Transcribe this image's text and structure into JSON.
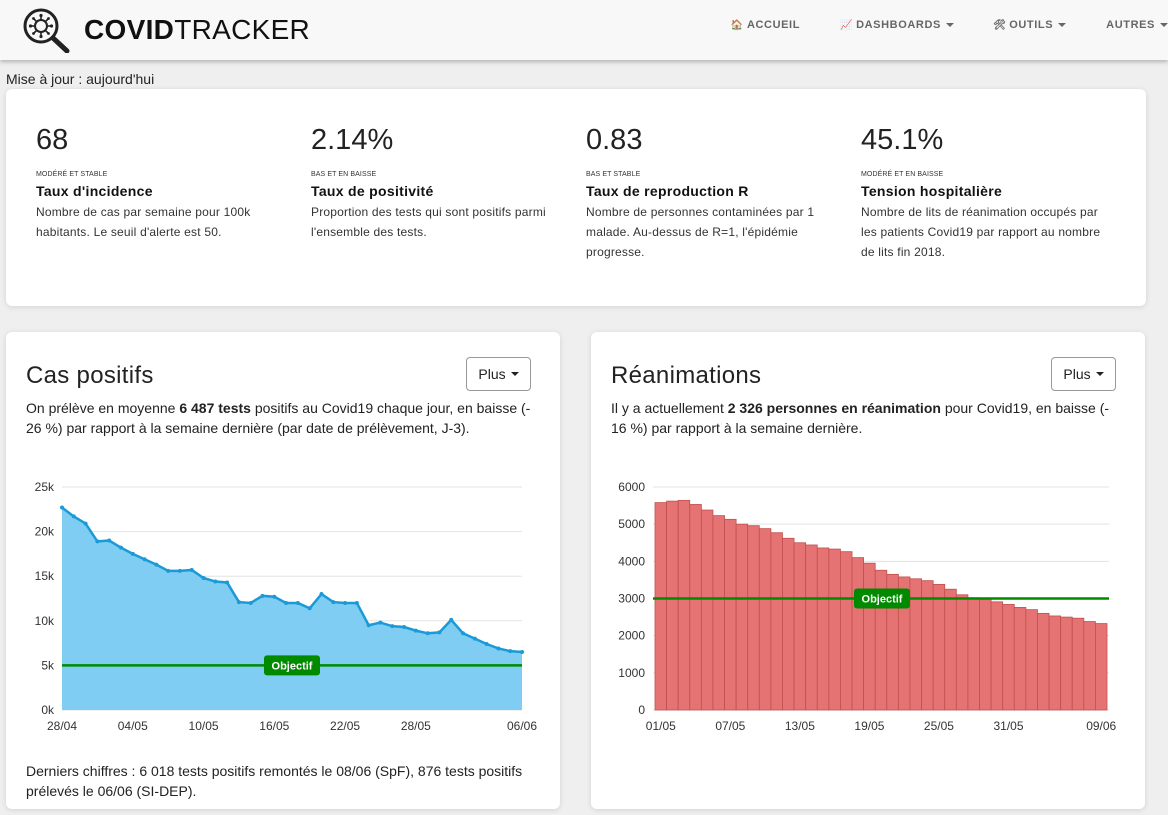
{
  "navbar": {
    "brand_bold": "COVID",
    "brand_light": "TRACKER",
    "items": [
      {
        "icon": "🏠",
        "label": "ACCUEIL",
        "dropdown": false
      },
      {
        "icon": "📈",
        "label": "DASHBOARDS",
        "dropdown": true
      },
      {
        "icon": "🛠",
        "label": "OUTILS",
        "dropdown": true
      },
      {
        "icon": "",
        "label": "AUTRES",
        "dropdown": true
      }
    ]
  },
  "update_text": "Mise à jour : aujourd'hui",
  "kpis": [
    {
      "value": "68",
      "level": "MODÉRÉ ET STABLE",
      "title": "Taux d'incidence",
      "desc": "Nombre de cas par semaine pour 100k habitants. Le seuil d'alerte est 50."
    },
    {
      "value": "2.14%",
      "level": "BAS ET EN BAISSE",
      "title": "Taux de positivité",
      "desc": "Proportion des tests qui sont positifs parmi l'ensemble des tests."
    },
    {
      "value": "0.83",
      "level": "BAS ET STABLE",
      "title": "Taux de reproduction R",
      "desc": "Nombre de personnes contaminées par 1 malade. Au-dessus de R=1, l'épidémie progresse."
    },
    {
      "value": "45.1%",
      "level": "MODÉRÉ ET EN BAISSE",
      "title": "Tension hospitalière",
      "desc": "Nombre de lits de réanimation occupés par les patients Covid19 par rapport au nombre de lits fin 2018."
    }
  ],
  "cas": {
    "title": "Cas positifs",
    "button": "Plus",
    "text_pre": "On prélève en moyenne ",
    "text_bold": "6 487 tests",
    "text_post": " positifs au Covid19 chaque jour, en baisse (- 26 %) par rapport à la semaine dernière (par date de prélèvement, J-3).",
    "footer": "Derniers chiffres : 6 018 tests positifs remontés le 08/06 (SpF), 876 tests positifs prélevés le 06/06 (SI-DEP)."
  },
  "rea": {
    "title": "Réanimations",
    "button": "Plus",
    "text_pre": "Il y a actuellement ",
    "text_bold": "2 326 personnes en réanimation",
    "text_post": " pour Covid19, en baisse (- 16 %) par rapport à la semaine dernière."
  },
  "colors": {
    "area_fill": "#7fcdf2",
    "area_line": "#1a9ad6",
    "bar_fill": "#e57373",
    "bar_stroke": "#c0504d",
    "objective": "#008a00"
  },
  "chart_data": [
    {
      "type": "area",
      "title": "",
      "xlabel": "",
      "ylabel": "",
      "x_ticks": [
        "28/04",
        "04/05",
        "10/05",
        "16/05",
        "22/05",
        "28/05",
        "06/06"
      ],
      "y_ticks": [
        "0k",
        "5k",
        "10k",
        "15k",
        "20k",
        "25k"
      ],
      "ylim": [
        0,
        25000
      ],
      "grid": true,
      "series": [
        {
          "name": "",
          "x": [
            "28/04",
            "29/04",
            "30/04",
            "01/05",
            "02/05",
            "03/05",
            "04/05",
            "05/05",
            "06/05",
            "07/05",
            "08/05",
            "09/05",
            "10/05",
            "11/05",
            "12/05",
            "13/05",
            "14/05",
            "15/05",
            "16/05",
            "17/05",
            "18/05",
            "19/05",
            "20/05",
            "21/05",
            "22/05",
            "23/05",
            "24/05",
            "25/05",
            "26/05",
            "27/05",
            "28/05",
            "29/05",
            "30/05",
            "31/05",
            "01/06",
            "02/06",
            "03/06",
            "04/06",
            "05/06",
            "06/06"
          ],
          "values": [
            22700,
            21700,
            20900,
            18900,
            19000,
            18200,
            17500,
            16900,
            16300,
            15600,
            15600,
            15700,
            14800,
            14400,
            14300,
            12100,
            12000,
            12800,
            12700,
            12000,
            12000,
            11400,
            13000,
            12100,
            12000,
            12000,
            9500,
            9800,
            9400,
            9300,
            8900,
            8600,
            8700,
            10100,
            8600,
            8000,
            7400,
            6900,
            6600,
            6500
          ]
        }
      ],
      "reference_line": {
        "label": "Objectif",
        "value": 5000
      }
    },
    {
      "type": "bar",
      "title": "",
      "xlabel": "",
      "ylabel": "",
      "x_ticks": [
        "01/05",
        "07/05",
        "13/05",
        "19/05",
        "25/05",
        "31/05",
        "09/06"
      ],
      "y_ticks": [
        "0",
        "1000",
        "2000",
        "3000",
        "4000",
        "5000",
        "6000"
      ],
      "ylim": [
        0,
        6000
      ],
      "grid": true,
      "series": [
        {
          "name": "",
          "values": [
            5580,
            5620,
            5640,
            5530,
            5380,
            5230,
            5130,
            5000,
            4960,
            4880,
            4770,
            4620,
            4500,
            4440,
            4360,
            4330,
            4260,
            4100,
            3950,
            3760,
            3650,
            3580,
            3530,
            3480,
            3380,
            3250,
            3100,
            3020,
            2980,
            2910,
            2840,
            2760,
            2700,
            2600,
            2530,
            2500,
            2470,
            2380,
            2326
          ]
        }
      ],
      "reference_line": {
        "label": "Objectif",
        "value": 3000
      }
    }
  ]
}
